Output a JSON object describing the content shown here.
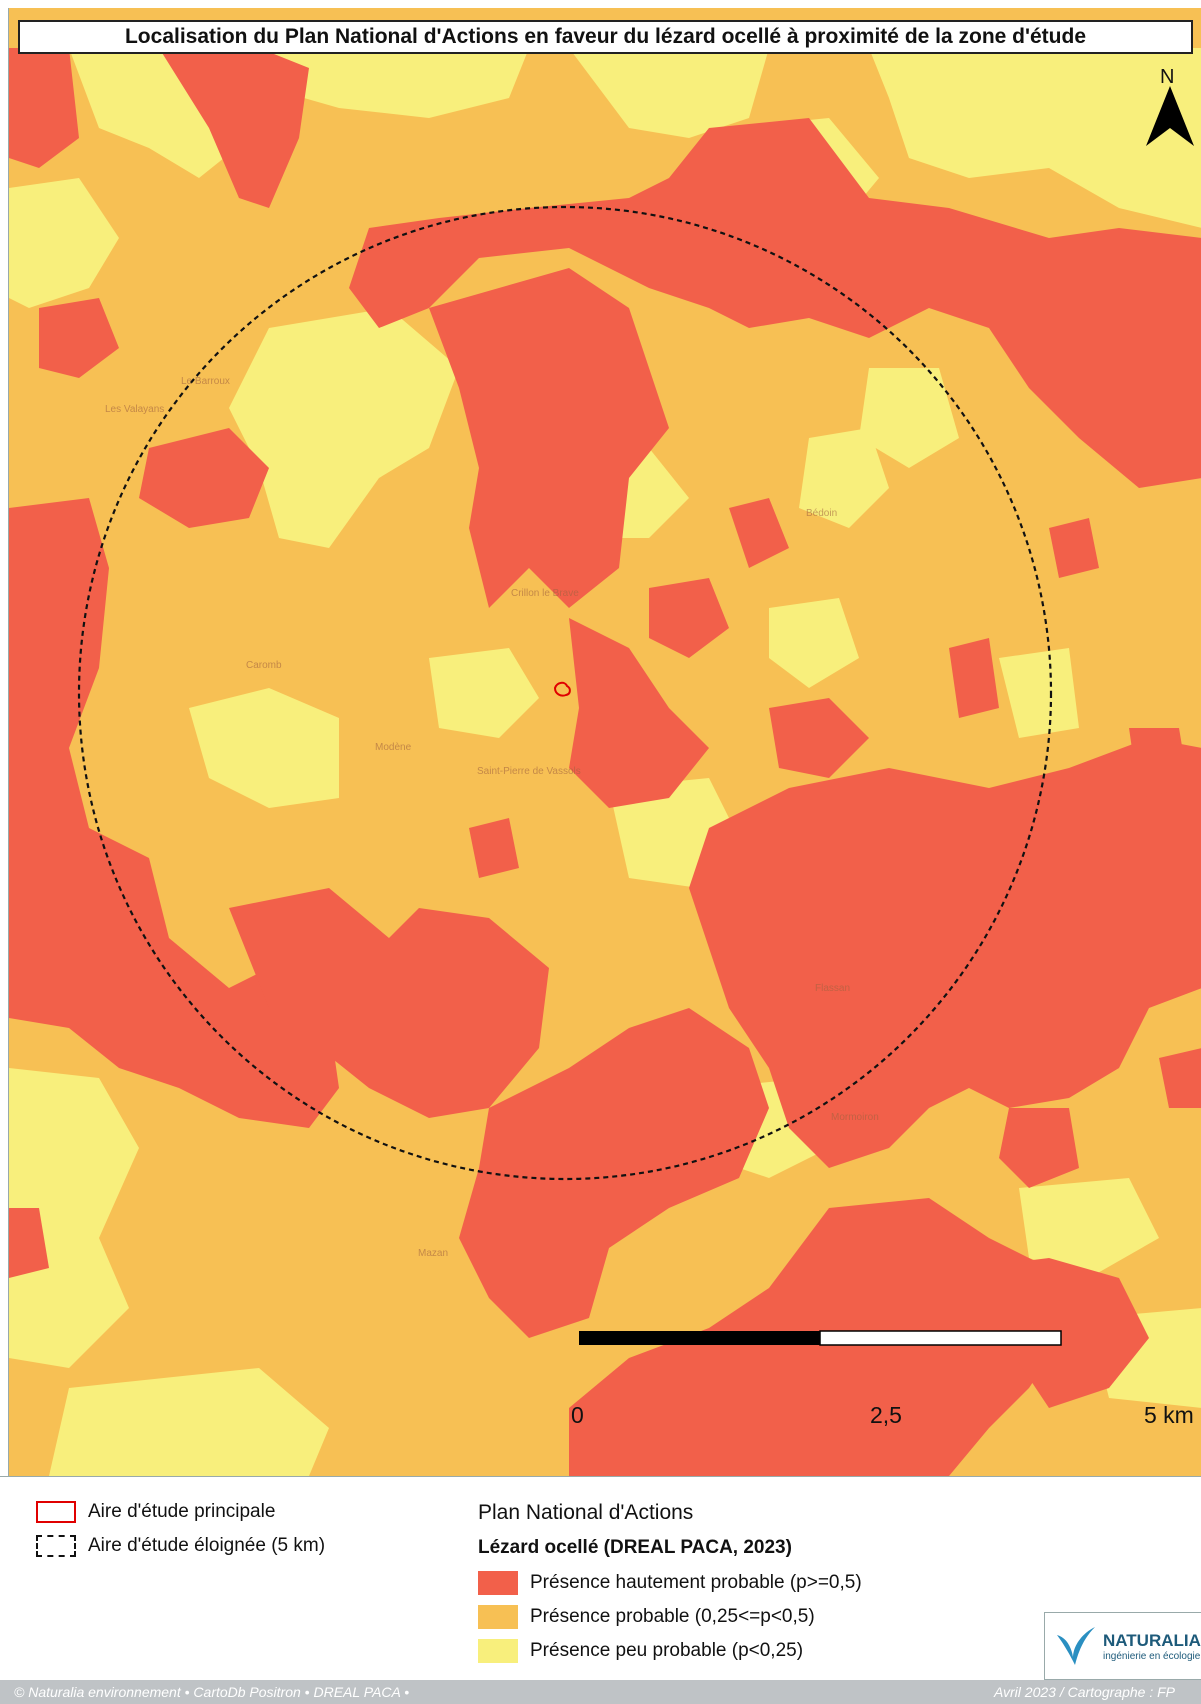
{
  "map": {
    "title": "Localisation du Plan National d'Actions en faveur du lézard ocellé à proximité de la zone d'étude",
    "north_label": "N",
    "scale_labels": [
      "0",
      "2,5",
      "5 km"
    ],
    "place_labels": [
      "Crillon le Brave",
      "Caromb",
      "Modène",
      "Saint-Pierre de Vassols",
      "Bédoin",
      "Le Barroux",
      "Les Valayans",
      "Mormoiron",
      "Mazan",
      "Flassan"
    ],
    "colors": {
      "high": "#f2604a",
      "mid": "#f7c054",
      "low": "#f8ef7c",
      "study_area": "#e00000"
    }
  },
  "legend": {
    "study_main": "Aire d'étude principale",
    "study_far": "Aire d'étude éloignée (5 km)",
    "heading": "Plan National d'Actions",
    "subheading": "Lézard ocellé (DREAL PACA, 2023)",
    "classes": [
      {
        "label": "Présence hautement probable (p>=0,5)",
        "color": "#f2604a"
      },
      {
        "label": "Présence probable (0,25<=p<0,5)",
        "color": "#f7c054"
      },
      {
        "label": "Présence peu probable (p<0,25)",
        "color": "#f8ef7c"
      }
    ]
  },
  "logo": {
    "name": "NATURALIA",
    "tagline": "ingénierie en écologie"
  },
  "footer": {
    "left": "© Naturalia environnement • CartoDb Positron • DREAL PACA •",
    "right": "Avril 2023 / Cartographe : FP"
  }
}
